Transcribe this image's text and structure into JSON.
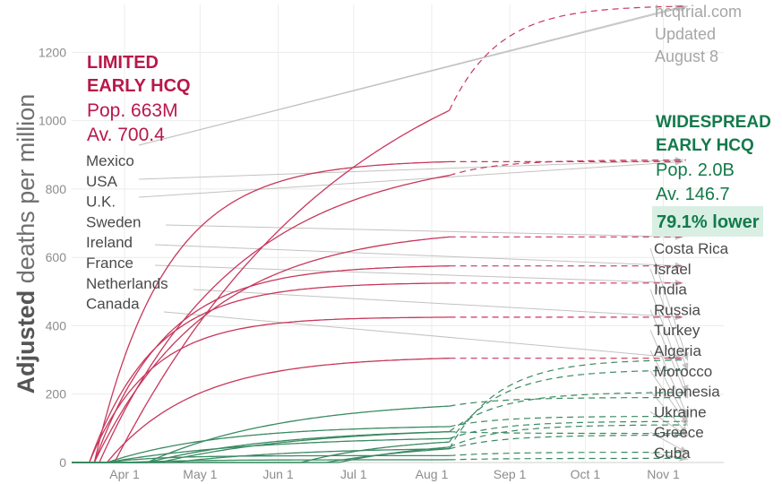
{
  "chart_data": {
    "type": "line",
    "ylabel_bold": "Adjusted",
    "ylabel_rest": " deaths per million",
    "ylim": [
      0,
      1340
    ],
    "yticks": [
      0,
      200,
      400,
      600,
      800,
      1000,
      1200
    ],
    "xlim": [
      "2020-03-11",
      "2020-11-25"
    ],
    "xticks": [
      {
        "date": "2020-04-01",
        "label": "Apr 1"
      },
      {
        "date": "2020-05-01",
        "label": "May 1"
      },
      {
        "date": "2020-06-01",
        "label": "Jun 1"
      },
      {
        "date": "2020-07-01",
        "label": "Jul 1"
      },
      {
        "date": "2020-08-01",
        "label": "Aug 1"
      },
      {
        "date": "2020-09-01",
        "label": "Sep 1"
      },
      {
        "date": "2020-10-01",
        "label": "Oct 1"
      },
      {
        "date": "2020-11-01",
        "label": "Nov 1"
      }
    ],
    "grid": true,
    "observed_through": "2020-08-08",
    "projected_through": "2020-11-10",
    "colors": {
      "limited": "#c8375c",
      "widespread": "#3a8a62",
      "connector": "#c2c2c2",
      "header_limited": "#b8184a",
      "header_widespread": "#137a4b",
      "callout_bg": "#d9efe3",
      "note": "#a6a6a6"
    },
    "groups": {
      "limited": {
        "title_line1": "LIMITED",
        "title_line2": "EARLY HCQ",
        "pop": "Pop. 663M",
        "avg": "Av. 700.4"
      },
      "widespread": {
        "title_line1": "WIDESPREAD",
        "title_line2": "EARLY HCQ",
        "pop": "Pop. 2.0B",
        "avg": "Av. 146.7",
        "callout": "79.1% lower"
      }
    },
    "note_lines": [
      "hcqtrial.com",
      "Updated",
      "August 8"
    ],
    "series": [
      {
        "name": "Mexico",
        "group": "limited",
        "start": "2020-03-28",
        "tau": 95,
        "value_aug8": 1030,
        "projected_end": 1335
      },
      {
        "name": "USA",
        "group": "limited",
        "start": "2020-03-22",
        "tau": 55,
        "value_aug8": 840,
        "projected_end": 885
      },
      {
        "name": "U.K.",
        "group": "limited",
        "start": "2020-03-20",
        "tau": 28,
        "value_aug8": 880,
        "projected_end": 880
      },
      {
        "name": "Sweden",
        "group": "limited",
        "start": "2020-03-20",
        "tau": 45,
        "value_aug8": 660,
        "projected_end": 660
      },
      {
        "name": "Ireland",
        "group": "limited",
        "start": "2020-03-20",
        "tau": 28,
        "value_aug8": 575,
        "projected_end": 575
      },
      {
        "name": "France",
        "group": "limited",
        "start": "2020-03-18",
        "tau": 26,
        "value_aug8": 525,
        "projected_end": 525
      },
      {
        "name": "Netherlands",
        "group": "limited",
        "start": "2020-03-18",
        "tau": 24,
        "value_aug8": 425,
        "projected_end": 425
      },
      {
        "name": "Canada",
        "group": "limited",
        "start": "2020-03-25",
        "tau": 35,
        "value_aug8": 305,
        "projected_end": 305
      },
      {
        "name": "Costa Rica",
        "group": "widespread",
        "start": "2020-06-20",
        "tau": 50,
        "value_aug8": 40,
        "projected_end": 300
      },
      {
        "name": "Israel",
        "group": "widespread",
        "start": "2020-06-10",
        "tau": 40,
        "value_aug8": 60,
        "projected_end": 270
      },
      {
        "name": "India",
        "group": "widespread",
        "start": "2020-04-15",
        "tau": 60,
        "value_aug8": 90,
        "projected_end": 205
      },
      {
        "name": "Russia",
        "group": "widespread",
        "start": "2020-04-10",
        "tau": 55,
        "value_aug8": 165,
        "projected_end": 190
      },
      {
        "name": "Turkey",
        "group": "widespread",
        "start": "2020-03-25",
        "tau": 45,
        "value_aug8": 105,
        "projected_end": 135
      },
      {
        "name": "Algeria",
        "group": "widespread",
        "start": "2020-03-25",
        "tau": 60,
        "value_aug8": 70,
        "projected_end": 120
      },
      {
        "name": "Morocco",
        "group": "widespread",
        "start": "2020-06-25",
        "tau": 45,
        "value_aug8": 45,
        "projected_end": 110
      },
      {
        "name": "Indonesia",
        "group": "widespread",
        "start": "2020-04-10",
        "tau": 55,
        "value_aug8": 90,
        "projected_end": 85
      },
      {
        "name": "Ukraine",
        "group": "widespread",
        "start": "2020-04-20",
        "tau": 50,
        "value_aug8": 40,
        "projected_end": 80
      },
      {
        "name": "Greece",
        "group": "widespread",
        "start": "2020-03-25",
        "tau": 20,
        "value_aug8": 20,
        "projected_end": 30
      },
      {
        "name": "Cuba",
        "group": "widespread",
        "start": "2020-04-01",
        "tau": 25,
        "value_aug8": 8,
        "projected_end": 12
      }
    ]
  }
}
